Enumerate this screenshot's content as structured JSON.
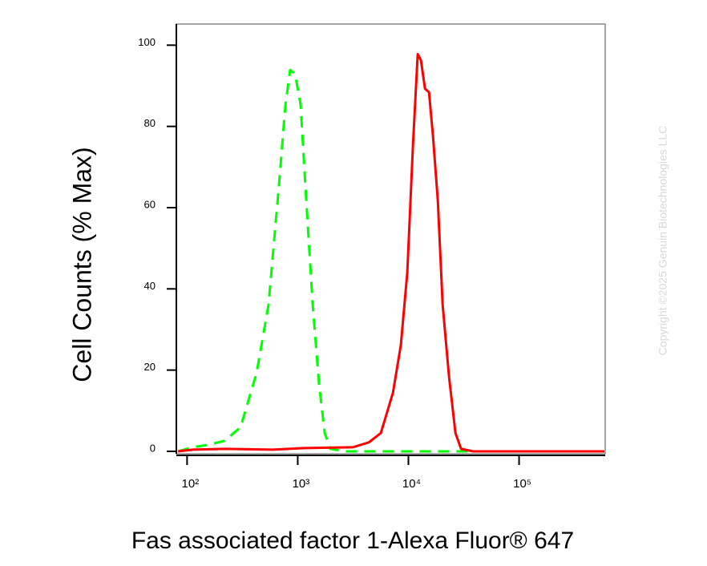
{
  "chart_data": {
    "type": "line",
    "x_label": "Fas associated factor 1-Alexa Fluor® 647",
    "y_label": "Cell Counts (% Max)",
    "watermark": "Copyright ©2025 Genuin Biotechnologies LLC",
    "x_scale": "log",
    "xlim": [
      80,
      600000
    ],
    "xticks": [
      {
        "value": 100,
        "label": "10²"
      },
      {
        "value": 1000,
        "label": "10³"
      },
      {
        "value": 10000,
        "label": "10⁴"
      },
      {
        "value": 100000,
        "label": "10⁵"
      }
    ],
    "ylim": [
      -0.6,
      105.2
    ],
    "yticks": [
      0,
      20,
      40,
      60,
      80,
      100
    ],
    "series": [
      {
        "color": "#00ff00",
        "dash": true,
        "x": [
          83,
          112,
          156,
          218,
          304,
          425,
          545,
          677,
          774,
          855,
          945,
          1062,
          1194,
          1365,
          1560,
          1753,
          1969,
          2660,
          8550,
          45400
        ],
        "values": [
          0,
          1,
          1.6,
          2.6,
          5.9,
          19.3,
          36.1,
          65.7,
          85.4,
          93.9,
          92.9,
          85.4,
          61.7,
          36.1,
          16.4,
          4.5,
          0.6,
          0,
          0,
          0
        ]
      },
      {
        "color": "#ff0000",
        "dash": false,
        "x": [
          83,
          112,
          218,
          593,
          1153,
          3140,
          4385,
          5635,
          7245,
          8550,
          9770,
          10990,
          12140,
          12980,
          14120,
          15350,
          16680,
          18450,
          20380,
          23290,
          26610,
          29920,
          38400,
          590000
        ],
        "values": [
          0,
          0.4,
          0.6,
          0.4,
          0.8,
          1.0,
          2.2,
          4.5,
          14.4,
          26.2,
          44.0,
          75.5,
          97.8,
          96.3,
          89.3,
          88.4,
          77.5,
          61.7,
          36.1,
          18.3,
          4.5,
          0.6,
          0,
          0
        ]
      }
    ]
  }
}
